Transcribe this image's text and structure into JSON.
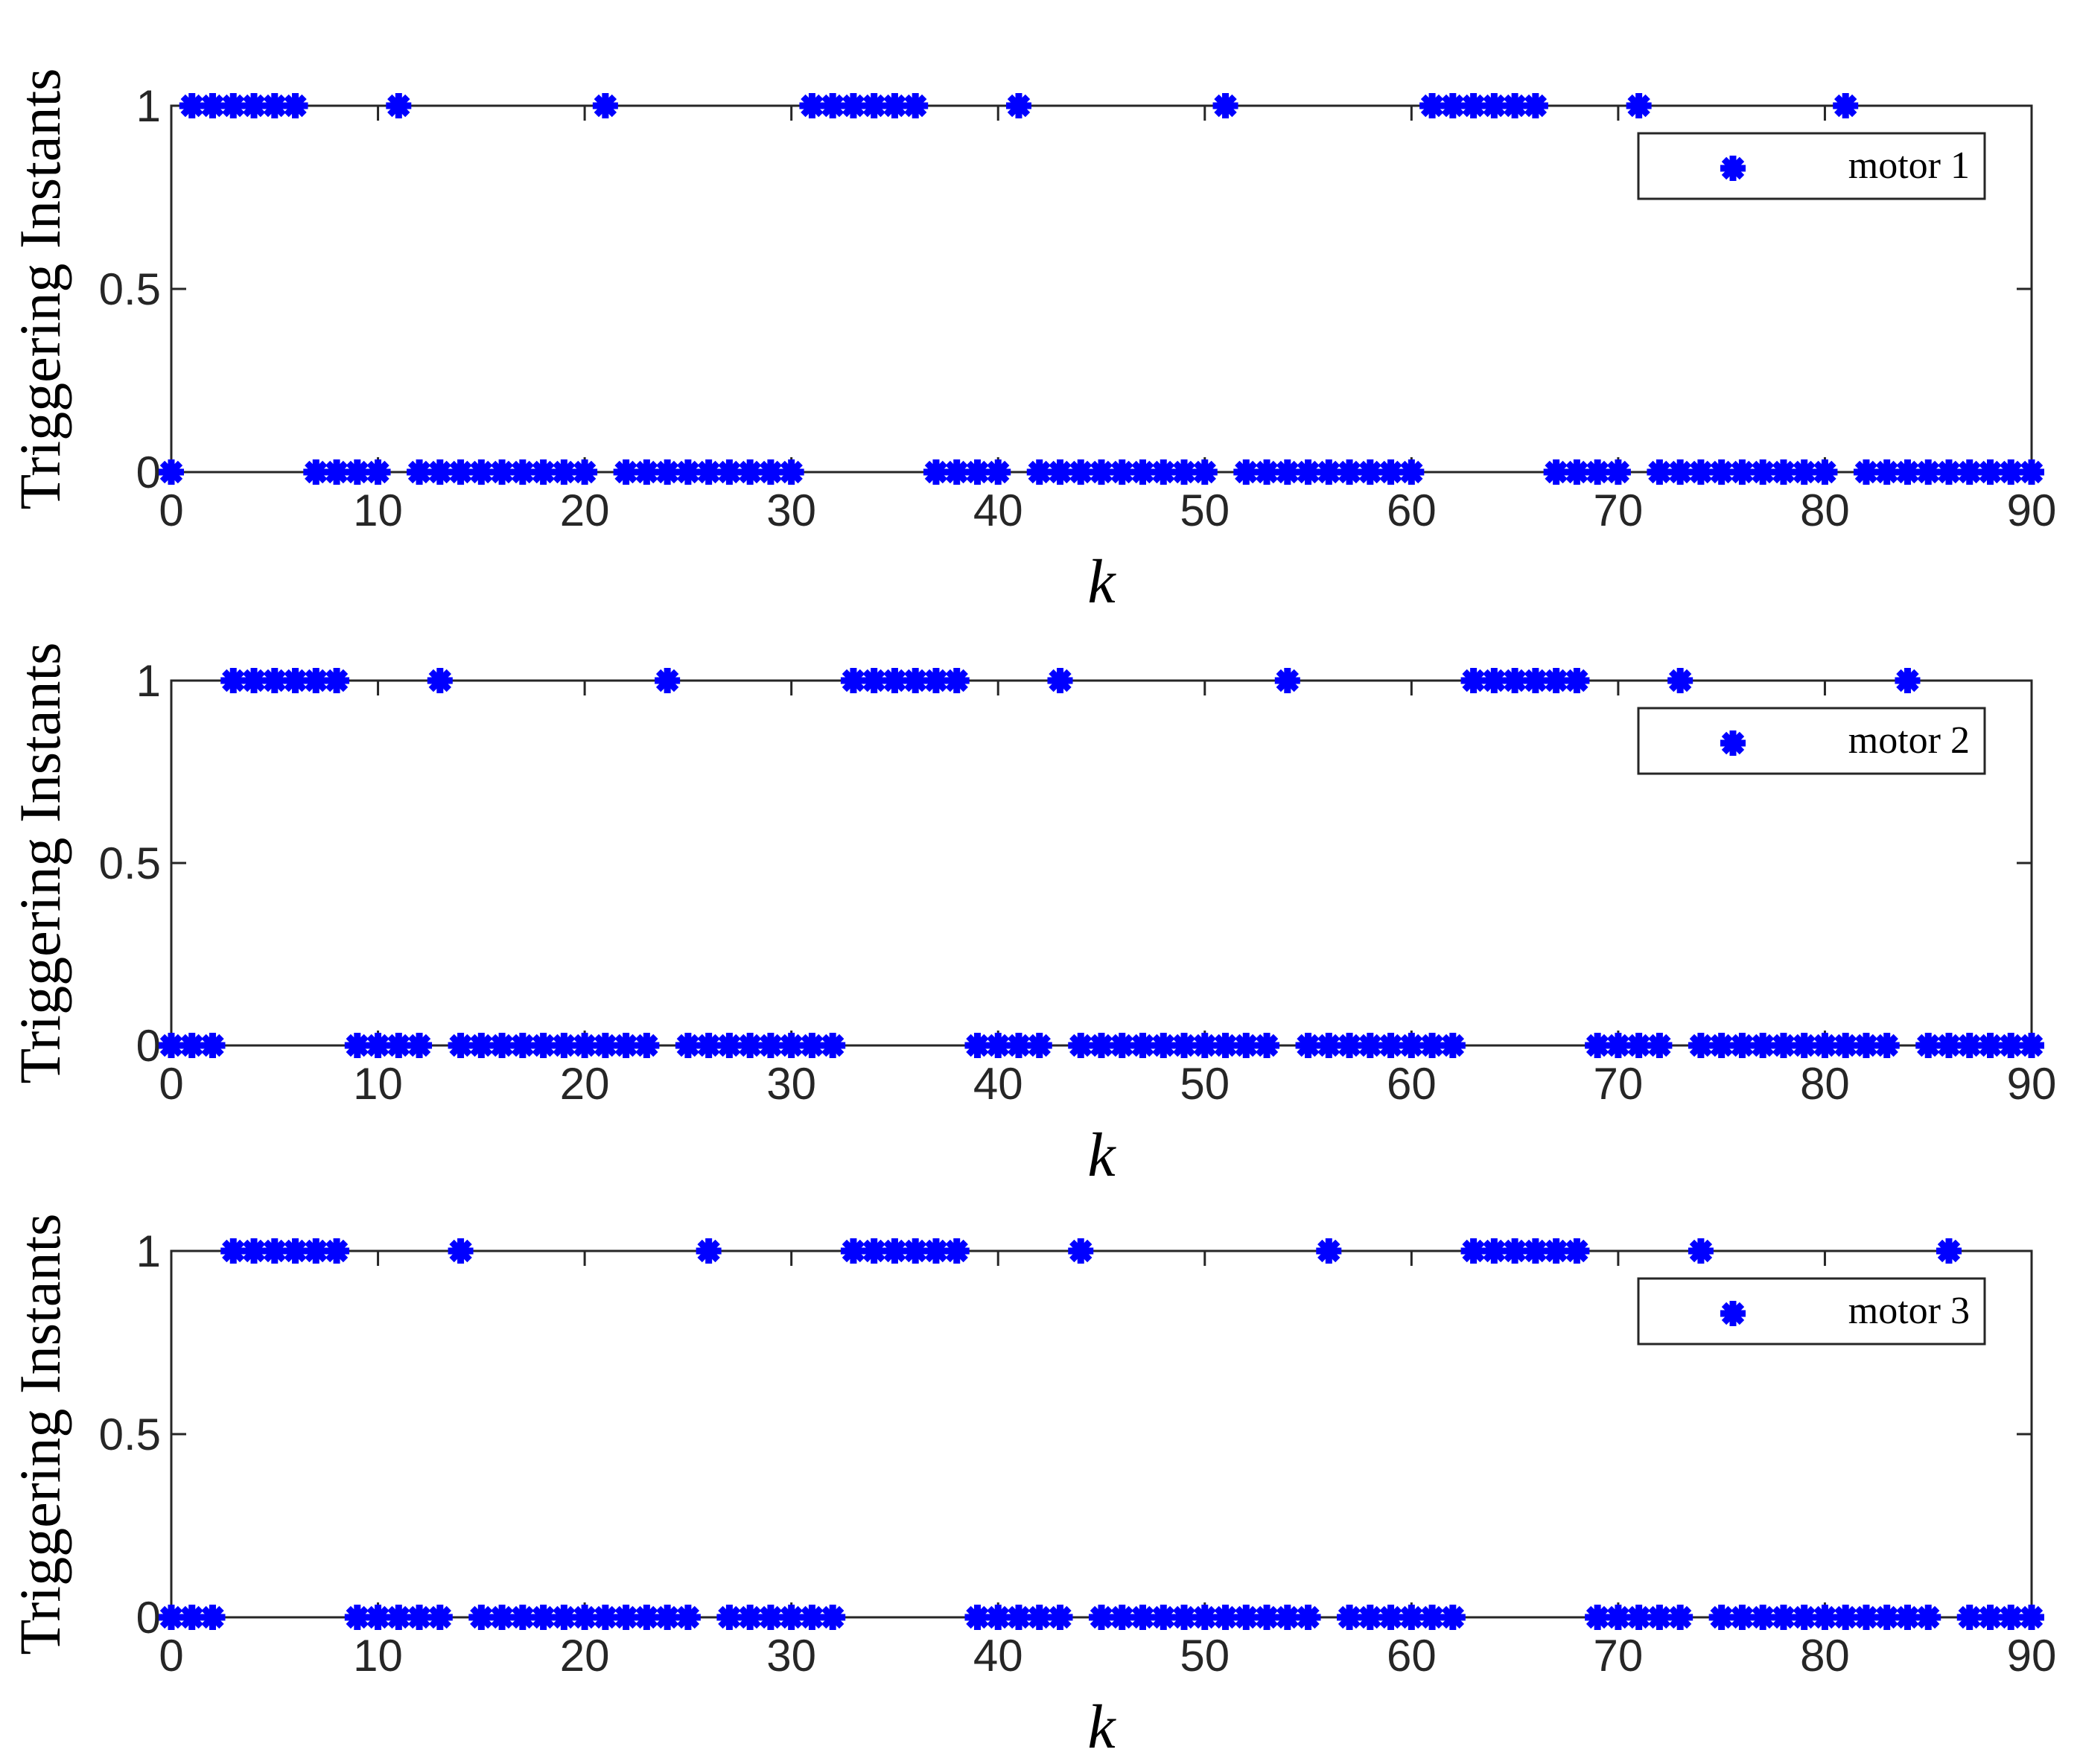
{
  "chart_data": [
    {
      "type": "scatter",
      "title": "",
      "xlabel": "k",
      "ylabel": "Triggering Instants",
      "xlim": [
        0,
        90
      ],
      "ylim": [
        0,
        1
      ],
      "xticks": [
        0,
        10,
        20,
        30,
        40,
        50,
        60,
        70,
        80,
        90
      ],
      "xtick_labels": [
        "0",
        "10",
        "20",
        "30",
        "40",
        "50",
        "60",
        "70",
        "80",
        "90"
      ],
      "yticks": [
        0,
        0.5,
        1
      ],
      "ytick_labels": [
        "0",
        "0.5",
        "1"
      ],
      "legend": {
        "label": "motor 1",
        "location": "top-right"
      },
      "marker": "asterisk",
      "color": "#0000ff",
      "x": [
        0,
        1,
        2,
        3,
        4,
        5,
        6,
        7,
        8,
        9,
        10,
        11,
        12,
        13,
        14,
        15,
        16,
        17,
        18,
        19,
        20,
        21,
        22,
        23,
        24,
        25,
        26,
        27,
        28,
        29,
        30,
        31,
        32,
        33,
        34,
        35,
        36,
        37,
        38,
        39,
        40,
        41,
        42,
        43,
        44,
        45,
        46,
        47,
        48,
        49,
        50,
        51,
        52,
        53,
        54,
        55,
        56,
        57,
        58,
        59,
        60,
        61,
        62,
        63,
        64,
        65,
        66,
        67,
        68,
        69,
        70,
        71,
        72,
        73,
        74,
        75,
        76,
        77,
        78,
        79,
        80,
        81,
        82,
        83,
        84,
        85,
        86,
        87,
        88,
        89,
        90
      ],
      "y": [
        0,
        1,
        1,
        1,
        1,
        1,
        1,
        0,
        0,
        0,
        0,
        1,
        0,
        0,
        0,
        0,
        0,
        0,
        0,
        0,
        0,
        1,
        0,
        0,
        0,
        0,
        0,
        0,
        0,
        0,
        0,
        1,
        1,
        1,
        1,
        1,
        1,
        0,
        0,
        0,
        0,
        1,
        0,
        0,
        0,
        0,
        0,
        0,
        0,
        0,
        0,
        1,
        0,
        0,
        0,
        0,
        0,
        0,
        0,
        0,
        0,
        1,
        1,
        1,
        1,
        1,
        1,
        0,
        0,
        0,
        0,
        1,
        0,
        0,
        0,
        0,
        0,
        0,
        0,
        0,
        0,
        1,
        0,
        0,
        0,
        0,
        0,
        0,
        0,
        0,
        0
      ]
    },
    {
      "type": "scatter",
      "title": "",
      "xlabel": "k",
      "ylabel": "Triggering Instants",
      "xlim": [
        0,
        90
      ],
      "ylim": [
        0,
        1
      ],
      "xticks": [
        0,
        10,
        20,
        30,
        40,
        50,
        60,
        70,
        80,
        90
      ],
      "xtick_labels": [
        "0",
        "10",
        "20",
        "30",
        "40",
        "50",
        "60",
        "70",
        "80",
        "90"
      ],
      "yticks": [
        0,
        0.5,
        1
      ],
      "ytick_labels": [
        "0",
        "0.5",
        "1"
      ],
      "legend": {
        "label": "motor 2",
        "location": "top-right"
      },
      "marker": "asterisk",
      "color": "#0000ff",
      "x": [
        0,
        1,
        2,
        3,
        4,
        5,
        6,
        7,
        8,
        9,
        10,
        11,
        12,
        13,
        14,
        15,
        16,
        17,
        18,
        19,
        20,
        21,
        22,
        23,
        24,
        25,
        26,
        27,
        28,
        29,
        30,
        31,
        32,
        33,
        34,
        35,
        36,
        37,
        38,
        39,
        40,
        41,
        42,
        43,
        44,
        45,
        46,
        47,
        48,
        49,
        50,
        51,
        52,
        53,
        54,
        55,
        56,
        57,
        58,
        59,
        60,
        61,
        62,
        63,
        64,
        65,
        66,
        67,
        68,
        69,
        70,
        71,
        72,
        73,
        74,
        75,
        76,
        77,
        78,
        79,
        80,
        81,
        82,
        83,
        84,
        85,
        86,
        87,
        88,
        89,
        90
      ],
      "y": [
        0,
        0,
        0,
        1,
        1,
        1,
        1,
        1,
        1,
        0,
        0,
        0,
        0,
        1,
        0,
        0,
        0,
        0,
        0,
        0,
        0,
        0,
        0,
        0,
        1,
        0,
        0,
        0,
        0,
        0,
        0,
        0,
        0,
        1,
        1,
        1,
        1,
        1,
        1,
        0,
        0,
        0,
        0,
        1,
        0,
        0,
        0,
        0,
        0,
        0,
        0,
        0,
        0,
        0,
        1,
        0,
        0,
        0,
        0,
        0,
        0,
        0,
        0,
        1,
        1,
        1,
        1,
        1,
        1,
        0,
        0,
        0,
        0,
        1,
        0,
        0,
        0,
        0,
        0,
        0,
        0,
        0,
        0,
        0,
        1,
        0,
        0,
        0,
        0,
        0,
        0
      ]
    },
    {
      "type": "scatter",
      "title": "",
      "xlabel": "k",
      "ylabel": "Triggering Instants",
      "xlim": [
        0,
        90
      ],
      "ylim": [
        0,
        1
      ],
      "xticks": [
        0,
        10,
        20,
        30,
        40,
        50,
        60,
        70,
        80,
        90
      ],
      "xtick_labels": [
        "0",
        "10",
        "20",
        "30",
        "40",
        "50",
        "60",
        "70",
        "80",
        "90"
      ],
      "yticks": [
        0,
        0.5,
        1
      ],
      "ytick_labels": [
        "0",
        "0.5",
        "1"
      ],
      "legend": {
        "label": "motor 3",
        "location": "top-right"
      },
      "marker": "asterisk",
      "color": "#0000ff",
      "x": [
        0,
        1,
        2,
        3,
        4,
        5,
        6,
        7,
        8,
        9,
        10,
        11,
        12,
        13,
        14,
        15,
        16,
        17,
        18,
        19,
        20,
        21,
        22,
        23,
        24,
        25,
        26,
        27,
        28,
        29,
        30,
        31,
        32,
        33,
        34,
        35,
        36,
        37,
        38,
        39,
        40,
        41,
        42,
        43,
        44,
        45,
        46,
        47,
        48,
        49,
        50,
        51,
        52,
        53,
        54,
        55,
        56,
        57,
        58,
        59,
        60,
        61,
        62,
        63,
        64,
        65,
        66,
        67,
        68,
        69,
        70,
        71,
        72,
        73,
        74,
        75,
        76,
        77,
        78,
        79,
        80,
        81,
        82,
        83,
        84,
        85,
        86,
        87,
        88,
        89,
        90
      ],
      "y": [
        0,
        0,
        0,
        1,
        1,
        1,
        1,
        1,
        1,
        0,
        0,
        0,
        0,
        0,
        1,
        0,
        0,
        0,
        0,
        0,
        0,
        0,
        0,
        0,
        0,
        0,
        1,
        0,
        0,
        0,
        0,
        0,
        0,
        1,
        1,
        1,
        1,
        1,
        1,
        0,
        0,
        0,
        0,
        0,
        1,
        0,
        0,
        0,
        0,
        0,
        0,
        0,
        0,
        0,
        0,
        0,
        1,
        0,
        0,
        0,
        0,
        0,
        0,
        1,
        1,
        1,
        1,
        1,
        1,
        0,
        0,
        0,
        0,
        0,
        1,
        0,
        0,
        0,
        0,
        0,
        0,
        0,
        0,
        0,
        0,
        0,
        1,
        0,
        0,
        0,
        0
      ]
    }
  ]
}
